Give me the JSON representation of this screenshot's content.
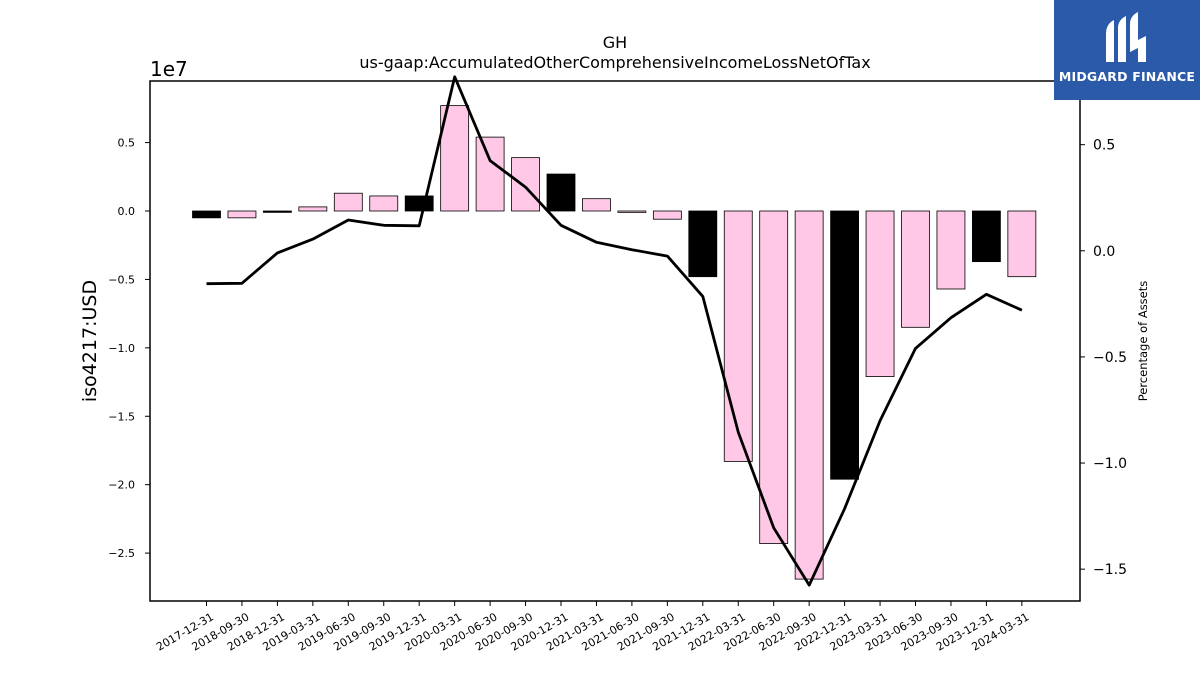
{
  "chart_data": {
    "type": "bar",
    "title": "GH",
    "subtitle": "us-gaap:AccumulatedOtherComprehensiveIncomeLossNetOfTax",
    "ylabel": "iso4217:USD",
    "y2label": "Percentage of Assets",
    "y_multiplier": "1e7",
    "ylim": [
      -28500000,
      9500000
    ],
    "y2lim": [
      -1.65,
      0.8
    ],
    "yticks": [
      -25000000,
      -20000000,
      -15000000,
      -10000000,
      -5000000,
      0,
      5000000
    ],
    "yticklabels": [
      "−2.5",
      "−2.0",
      "−1.5",
      "−1.0",
      "−0.5",
      "0.0",
      "0.5"
    ],
    "y2ticks": [
      -1.5,
      -1.0,
      -0.5,
      0.0,
      0.5
    ],
    "y2ticklabels": [
      "−1.5",
      "−1.0",
      "−0.5",
      "0.0",
      "0.5"
    ],
    "categories": [
      "2017-12-31",
      "2018-09-30",
      "2018-12-31",
      "2019-03-31",
      "2019-06-30",
      "2019-09-30",
      "2019-12-31",
      "2020-03-31",
      "2020-06-30",
      "2020-09-30",
      "2020-12-31",
      "2021-03-31",
      "2021-06-30",
      "2021-09-30",
      "2021-12-31",
      "2022-03-31",
      "2022-06-30",
      "2022-09-30",
      "2022-12-31",
      "2023-03-31",
      "2023-06-30",
      "2023-09-30",
      "2023-12-31",
      "2024-03-31"
    ],
    "series": [
      {
        "type": "bar",
        "values": [
          -500000,
          -500000,
          -100000,
          300000,
          1300000,
          1100000,
          1100000,
          7700000,
          5400000,
          3900000,
          2700000,
          900000,
          -100000,
          -600000,
          -4800000,
          -18300000,
          -24300000,
          -26900000,
          -19600000,
          -12100000,
          -8500000,
          -5700000,
          -3700000,
          -4800000
        ],
        "colors": [
          "#000000",
          "#ffc8e6",
          "#000000",
          "#ffc8e6",
          "#ffc8e6",
          "#ffc8e6",
          "#000000",
          "#ffc8e6",
          "#ffc8e6",
          "#ffc8e6",
          "#000000",
          "#ffc8e6",
          "#ffc8e6",
          "#ffc8e6",
          "#000000",
          "#ffc8e6",
          "#ffc8e6",
          "#ffc8e6",
          "#000000",
          "#ffc8e6",
          "#ffc8e6",
          "#ffc8e6",
          "#000000",
          "#ffc8e6"
        ]
      },
      {
        "type": "line",
        "axis": "right",
        "values": [
          -0.155,
          -0.153,
          -0.01,
          0.055,
          0.145,
          0.12,
          0.118,
          0.82,
          0.425,
          0.3,
          0.12,
          0.04,
          0.005,
          -0.025,
          -0.215,
          -0.855,
          -1.305,
          -1.575,
          -1.215,
          -0.8,
          -0.46,
          -0.315,
          -0.205,
          -0.28
        ],
        "color": "#000000"
      }
    ]
  },
  "logo": {
    "text": "MIDGARD FINANCE",
    "color": "#2b5aa8"
  }
}
